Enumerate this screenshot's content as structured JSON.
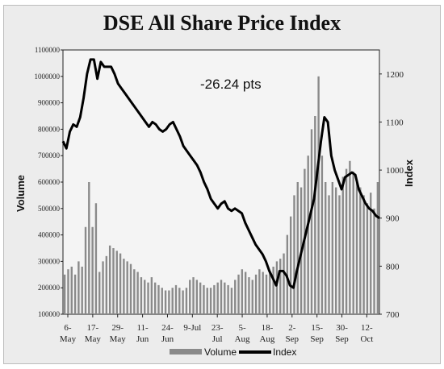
{
  "chart_data": {
    "type": "bar+line",
    "title": "DSE All Share Price Index",
    "annotation": "-26.24 pts",
    "y_left_label": "Volume",
    "y_right_label": "Index",
    "y_left_ticks": [
      "1100000",
      "1000000",
      "900000",
      "800000",
      "700000",
      "600000",
      "500000",
      "400000",
      "300000",
      "200000",
      "100000"
    ],
    "y_left_range": [
      100000,
      1100000
    ],
    "y_right_ticks": [
      "1200",
      "1100",
      "1000",
      "900",
      "800",
      "700"
    ],
    "y_right_range": [
      700,
      1250
    ],
    "x_ticks": [
      {
        "top": "6-",
        "bottom": "May"
      },
      {
        "top": "17-",
        "bottom": "May"
      },
      {
        "top": "29-",
        "bottom": "May"
      },
      {
        "top": "11-",
        "bottom": "Jun"
      },
      {
        "top": "24-",
        "bottom": "Jun"
      },
      {
        "top": "9-Jul",
        "bottom": ""
      },
      {
        "top": "23-",
        "bottom": "Jul"
      },
      {
        "top": "5-",
        "bottom": "Aug"
      },
      {
        "top": "18-",
        "bottom": "Aug"
      },
      {
        "top": "2-",
        "bottom": "Sep"
      },
      {
        "top": "15-",
        "bottom": "Sep"
      },
      {
        "top": "30-",
        "bottom": "Sep"
      },
      {
        "top": "12-",
        "bottom": "Oct"
      }
    ],
    "legend": [
      {
        "name": "Volume",
        "color": "#8a8a8a",
        "kind": "bar"
      },
      {
        "name": "Index",
        "color": "#000000",
        "kind": "line"
      }
    ],
    "series": [
      {
        "name": "Index",
        "values": [
          1060,
          1045,
          1080,
          1095,
          1090,
          1110,
          1150,
          1200,
          1230,
          1230,
          1190,
          1225,
          1215,
          1215,
          1215,
          1200,
          1180,
          1170,
          1160,
          1150,
          1140,
          1130,
          1120,
          1110,
          1100,
          1090,
          1100,
          1095,
          1085,
          1080,
          1085,
          1095,
          1100,
          1085,
          1070,
          1050,
          1040,
          1030,
          1020,
          1010,
          995,
          975,
          960,
          940,
          930,
          920,
          930,
          935,
          920,
          915,
          920,
          915,
          910,
          890,
          875,
          860,
          845,
          835,
          825,
          810,
          790,
          775,
          760,
          790,
          790,
          780,
          760,
          755,
          790,
          820,
          850,
          880,
          910,
          940,
          1000,
          1060,
          1110,
          1100,
          1030,
          1000,
          980,
          960,
          985,
          990,
          995,
          990,
          960,
          945,
          930,
          920,
          915,
          905,
          900
        ]
      },
      {
        "name": "Volume",
        "values": [
          250000,
          270000,
          280000,
          250000,
          300000,
          280000,
          430000,
          600000,
          430000,
          520000,
          260000,
          300000,
          320000,
          360000,
          350000,
          340000,
          330000,
          310000,
          300000,
          290000,
          270000,
          260000,
          240000,
          230000,
          220000,
          240000,
          220000,
          210000,
          200000,
          190000,
          190000,
          200000,
          210000,
          200000,
          190000,
          200000,
          230000,
          240000,
          230000,
          220000,
          210000,
          200000,
          200000,
          210000,
          220000,
          230000,
          220000,
          210000,
          200000,
          230000,
          250000,
          270000,
          260000,
          240000,
          230000,
          250000,
          270000,
          260000,
          250000,
          260000,
          280000,
          300000,
          310000,
          330000,
          400000,
          470000,
          550000,
          600000,
          580000,
          650000,
          700000,
          800000,
          850000,
          1000000,
          700000,
          600000,
          550000,
          600000,
          580000,
          550000,
          620000,
          650000,
          680000,
          640000,
          600000,
          580000,
          550000,
          520000,
          560000,
          500000,
          600000
        ]
      }
    ]
  }
}
